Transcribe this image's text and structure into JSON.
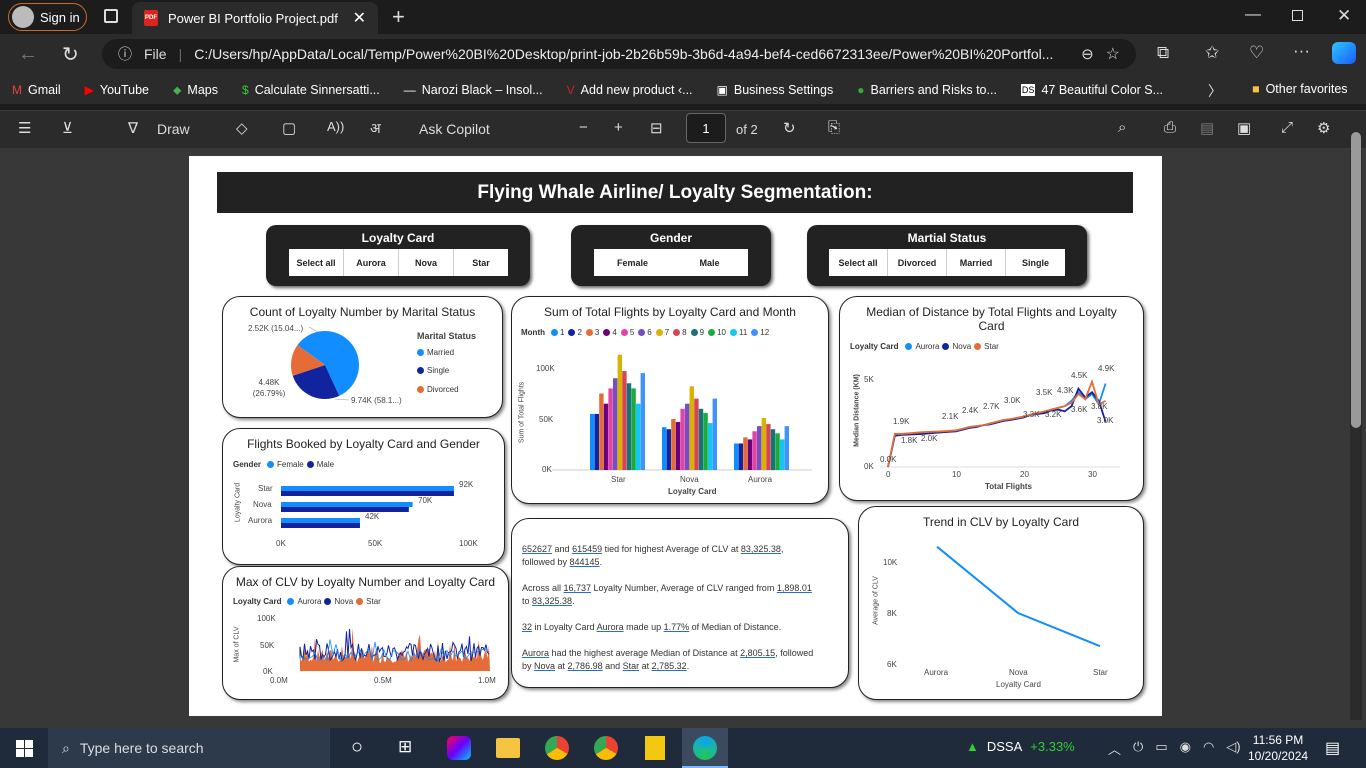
{
  "browser": {
    "signin": "Sign in",
    "tab_title": "Power BI Portfolio Project.pdf",
    "url_prefix": "File",
    "url": "C:/Users/hp/AppData/Local/Temp/Power%20BI%20Desktop/print-job-2b26b59b-3b6d-4a94-bef4-ced6672313ee/Power%20BI%20Portfol...",
    "favorites": [
      "Gmail",
      "YouTube",
      "Maps",
      "Calculate Sinnersatti...",
      "Narozi Black – Insol...",
      "Add new product ‹...",
      "Business Settings",
      "Barriers and Risks to...",
      "47 Beautiful Color S..."
    ],
    "other_favorites": "Other favorites"
  },
  "pdf_toolbar": {
    "draw": "Draw",
    "ask": "Ask Copilot",
    "page": "1",
    "of": "of 2"
  },
  "report": {
    "title": "Flying Whale Airline/ Loyalty Segmentation:",
    "slicers": {
      "loyalty": {
        "title": "Loyalty Card",
        "options": [
          "Select all",
          "Aurora",
          "Nova",
          "Star"
        ]
      },
      "gender": {
        "title": "Gender",
        "options": [
          "Female",
          "Male"
        ]
      },
      "marital": {
        "title": "Martial Status",
        "options": [
          "Select all",
          "Divorced",
          "Married",
          "Single"
        ]
      }
    },
    "pie": {
      "title": "Count of Loyalty Number by Marital Status",
      "legend_title": "Marital Status",
      "legend": [
        "Married",
        "Single",
        "Divorced"
      ],
      "labels": [
        "2.52K (15.04...)",
        "4.48K (26.79%)",
        "9.74K (58.1...)"
      ]
    },
    "flights_month": {
      "title": "Sum of Total Flights by Loyalty Card and Month",
      "legend_title": "Month",
      "months": [
        "1",
        "2",
        "3",
        "4",
        "5",
        "6",
        "7",
        "8",
        "9",
        "10",
        "11",
        "12"
      ],
      "ylabel": "Sum of Total Flights",
      "xlabel": "Loyalty Card",
      "yticks": [
        "100K",
        "50K",
        "0K"
      ],
      "cats": [
        "Star",
        "Nova",
        "Aurora"
      ]
    },
    "median": {
      "title": "Median of Distance by Total Flights and Loyalty Card",
      "legend_title": "Loyalty Card",
      "legend": [
        "Aurora",
        "Nova",
        "Star"
      ],
      "ylabel": "Median Distance (KM)",
      "xlabel": "Total Flights",
      "yticks": [
        "5K",
        "0K"
      ],
      "xticks": [
        "0",
        "10",
        "20",
        "30"
      ],
      "labels": [
        "0.0K",
        "1.9K",
        "1.8K",
        "2.0K",
        "2.1K",
        "2.4K",
        "2.7K",
        "3.0K",
        "3.3K",
        "3.5K",
        "3.2K",
        "4.3K",
        "4.5K",
        "3.6K",
        "3.8K",
        "4.9K",
        "3.0K"
      ]
    },
    "gender_bar": {
      "title": "Flights Booked by Loyalty Card and Gender",
      "legend_title": "Gender",
      "legend": [
        "Female",
        "Male"
      ],
      "ylabel": "Loyalty Card",
      "cats": [
        "Star",
        "Nova",
        "Aurora"
      ],
      "vals": [
        "92K",
        "70K",
        "42K"
      ],
      "xticks": [
        "0K",
        "50K",
        "100K"
      ]
    },
    "clv_max": {
      "title": "Max of CLV by Loyalty Number and Loyalty Card",
      "legend_title": "Loyalty Card",
      "legend": [
        "Aurora",
        "Nova",
        "Star"
      ],
      "ylabel": "Max of CLV",
      "yticks": [
        "100K",
        "50K",
        "0K"
      ],
      "xticks": [
        "0.0M",
        "0.5M",
        "1.0M"
      ]
    },
    "clv_trend": {
      "title": "Trend in CLV by Loyalty Card",
      "ylabel": "Average of CLV",
      "xlabel": "Loyalty Card",
      "yticks": [
        "10K",
        "8K",
        "6K"
      ],
      "cats": [
        "Aurora",
        "Nova",
        "Star"
      ]
    },
    "insights": {
      "p1": {
        "a": "652627",
        "b": " and ",
        "c": "615459",
        "d": " tied for highest Average of CLV at ",
        "e": "83,325.38",
        "f": ",",
        "g": "followed by ",
        "h": "844145",
        "i": "."
      },
      "p2": {
        "a": "Across all ",
        "b": "16,737",
        "c": " Loyalty Number, Average of CLV ranged from ",
        "d": "1,898.01",
        "e": "to ",
        "f": "83,325.38",
        "g": "."
      },
      "p3": {
        "a": "32",
        "b": " in Loyalty Card ",
        "c": "Aurora",
        "d": " made up ",
        "e": "1.77%",
        "f": " of Median of Distance."
      },
      "p4": {
        "a": "Aurora",
        "b": " had the highest average Median of Distance at ",
        "c": "2,805.15",
        "d": ", followed",
        "e": "by ",
        "f": "Nova",
        "g": " at ",
        "h": "2,786.98",
        "i": " and ",
        "j": "Star",
        "k": " at ",
        "l": "2,785.32",
        "m": "."
      }
    }
  },
  "chart_data": [
    {
      "type": "pie",
      "title": "Count of Loyalty Number by Marital Status",
      "categories": [
        "Married",
        "Single",
        "Divorced"
      ],
      "values": [
        9740,
        4480,
        2520
      ],
      "colors": [
        "#118dff",
        "#12239e",
        "#e66c37"
      ]
    },
    {
      "type": "bar",
      "title": "Sum of Total Flights by Loyalty Card and Month",
      "categories": [
        "Star",
        "Nova",
        "Aurora"
      ],
      "ylim": [
        0,
        120000
      ],
      "series": [
        {
          "name": "1",
          "values": [
            55000,
            42000,
            26000
          ]
        },
        {
          "name": "2",
          "values": [
            55000,
            40000,
            26000
          ]
        },
        {
          "name": "3",
          "values": [
            75000,
            50000,
            32000
          ]
        },
        {
          "name": "4",
          "values": [
            65000,
            47000,
            30000
          ]
        },
        {
          "name": "5",
          "values": [
            80000,
            60000,
            38000
          ]
        },
        {
          "name": "6",
          "values": [
            90000,
            65000,
            43000
          ]
        },
        {
          "name": "7",
          "values": [
            113000,
            82000,
            51000
          ]
        },
        {
          "name": "8",
          "values": [
            97000,
            70000,
            45000
          ]
        },
        {
          "name": "9",
          "values": [
            85000,
            60000,
            40000
          ]
        },
        {
          "name": "10",
          "values": [
            80000,
            56000,
            36000
          ]
        },
        {
          "name": "11",
          "values": [
            65000,
            46000,
            30000
          ]
        },
        {
          "name": "12",
          "values": [
            95000,
            70000,
            43000
          ]
        }
      ]
    },
    {
      "type": "line",
      "title": "Median of Distance by Total Flights and Loyalty Card",
      "x": [
        0,
        1,
        2,
        5,
        8,
        10,
        11,
        12,
        13,
        14,
        15,
        17,
        18,
        20,
        21,
        22,
        23,
        24,
        25,
        26,
        27,
        28,
        29,
        30,
        31,
        32
      ],
      "series": [
        {
          "name": "Aurora",
          "values": [
            0,
            1800,
            1900,
            1950,
            2000,
            2100,
            2200,
            2300,
            2350,
            2400,
            2500,
            2700,
            2750,
            2900,
            3000,
            3100,
            3150,
            3300,
            3400,
            3500,
            3800,
            4300,
            3900,
            4200,
            3600,
            4800
          ]
        },
        {
          "name": "Nova",
          "values": [
            0,
            1800,
            1850,
            1900,
            2000,
            2050,
            2150,
            2250,
            2300,
            2400,
            2450,
            2650,
            2700,
            2850,
            3000,
            3050,
            3100,
            3250,
            3300,
            3200,
            3500,
            4500,
            4000,
            4300,
            3800,
            2600
          ]
        },
        {
          "name": "Star",
          "values": [
            0,
            1900,
            1900,
            2000,
            2050,
            2100,
            2200,
            2300,
            2350,
            2400,
            2500,
            2700,
            2750,
            2900,
            3000,
            3100,
            3200,
            3300,
            3400,
            3500,
            3700,
            4200,
            3900,
            4900,
            3600,
            3800
          ]
        }
      ]
    },
    {
      "type": "bar",
      "title": "Flights Booked by Loyalty Card and Gender",
      "categories": [
        "Star",
        "Nova",
        "Aurora"
      ],
      "series": [
        {
          "name": "Female",
          "values": [
            92000,
            70000,
            42000
          ]
        },
        {
          "name": "Male",
          "values": [
            92000,
            68000,
            42000
          ]
        }
      ],
      "xlim": [
        0,
        100000
      ]
    },
    {
      "type": "area",
      "title": "Max of CLV by Loyalty Number and Loyalty Card",
      "xlim": [
        0,
        1000000
      ],
      "ylim": [
        0,
        100000
      ]
    },
    {
      "type": "line",
      "title": "Trend in CLV by Loyalty Card",
      "categories": [
        "Aurora",
        "Nova",
        "Star"
      ],
      "values": [
        10600,
        8000,
        6700
      ],
      "ylim": [
        6000,
        11000
      ]
    }
  ]
}
